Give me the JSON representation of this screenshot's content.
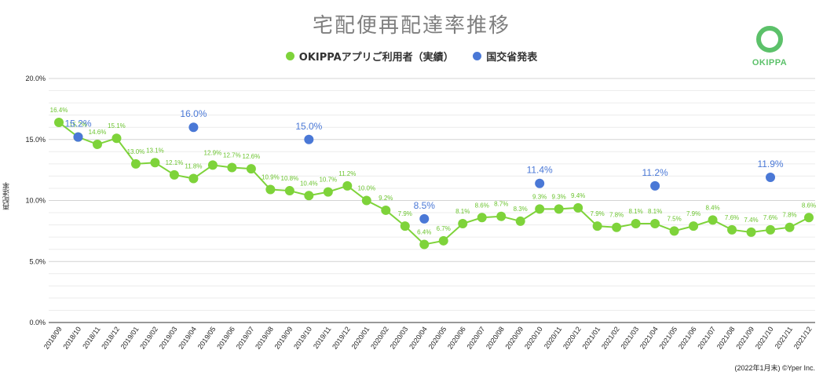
{
  "title": "宅配便再配達率推移",
  "legend": [
    {
      "label": "OKIPPAアプリご利用者（実績）",
      "color": "#7ed33a"
    },
    {
      "label": "国交省発表",
      "color": "#4a78d6"
    }
  ],
  "logo_text": "OKIPPA",
  "logo_color": "#5cc16a",
  "footer": "(2022年1月末) ©Yper Inc.",
  "chart_data": {
    "type": "line",
    "ylabel": "再配達率",
    "ylim": [
      0,
      20
    ],
    "yticks": [
      "0.0%",
      "5.0%",
      "10.0%",
      "15.0%",
      "20.0%"
    ],
    "ytick_values": [
      0,
      5,
      10,
      15,
      20
    ],
    "categories": [
      "2018/09",
      "2018/10",
      "2018/11",
      "2018/12",
      "2019/01",
      "2019/02",
      "2019/03",
      "2019/04",
      "2019/05",
      "2019/06",
      "2019/07",
      "2019/08",
      "2019/09",
      "2019/10",
      "2019/11",
      "2019/12",
      "2020/01",
      "2020/02",
      "2020/03",
      "2020/04",
      "2020/05",
      "2020/06",
      "2020/07",
      "2020/08",
      "2020/09",
      "2020/10",
      "2020/11",
      "2020/12",
      "2021/01",
      "2021/02",
      "2021/03",
      "2021/04",
      "2021/05",
      "2021/06",
      "2021/07",
      "2021/08",
      "2021/09",
      "2021/10",
      "2021/11",
      "2021/12"
    ],
    "series": [
      {
        "name": "OKIPPAアプリご利用者（実績）",
        "color": "#7ed33a",
        "values": [
          16.4,
          15.2,
          14.6,
          15.1,
          13.0,
          13.1,
          12.1,
          11.8,
          12.9,
          12.7,
          12.6,
          10.9,
          10.8,
          10.4,
          10.7,
          11.2,
          10.0,
          9.2,
          7.9,
          6.4,
          6.7,
          8.1,
          8.6,
          8.7,
          8.3,
          9.3,
          9.3,
          9.4,
          7.9,
          7.8,
          8.1,
          8.1,
          7.5,
          7.9,
          8.4,
          7.6,
          7.4,
          7.6,
          7.8,
          8.6
        ],
        "labels": [
          "16.4%",
          "15.2%",
          "14.6%",
          "15.1%",
          "13.0%",
          "13.1%",
          "12.1%",
          "11.8%",
          "12.9%",
          "12.7%",
          "12.6%",
          "10.9%",
          "10.8%",
          "10.4%",
          "10.7%",
          "11.2%",
          "10.0%",
          "9.2%",
          "7.9%",
          "6.4%",
          "6.7%",
          "8.1%",
          "8.6%",
          "8.7%",
          "8.3%",
          "9.3%",
          "9.3%",
          "9.4%",
          "7.9%",
          "7.8%",
          "8.1%",
          "8.1%",
          "7.5%",
          "7.9%",
          "8.4%",
          "7.6%",
          "7.4%",
          "7.6%",
          "7.8%",
          "8.6%"
        ]
      },
      {
        "name": "国交省発表",
        "color": "#4a78d6",
        "points": [
          {
            "x": "2018/10",
            "y": 15.2,
            "label": "15.2%"
          },
          {
            "x": "2019/04",
            "y": 16.0,
            "label": "16.0%"
          },
          {
            "x": "2019/10",
            "y": 15.0,
            "label": "15.0%"
          },
          {
            "x": "2020/04",
            "y": 8.5,
            "label": "8.5%"
          },
          {
            "x": "2020/10",
            "y": 11.4,
            "label": "11.4%"
          },
          {
            "x": "2021/04",
            "y": 11.2,
            "label": "11.2%"
          },
          {
            "x": "2021/10",
            "y": 11.9,
            "label": "11.9%"
          }
        ]
      }
    ],
    "grid": true,
    "legend_position": "top-center"
  }
}
